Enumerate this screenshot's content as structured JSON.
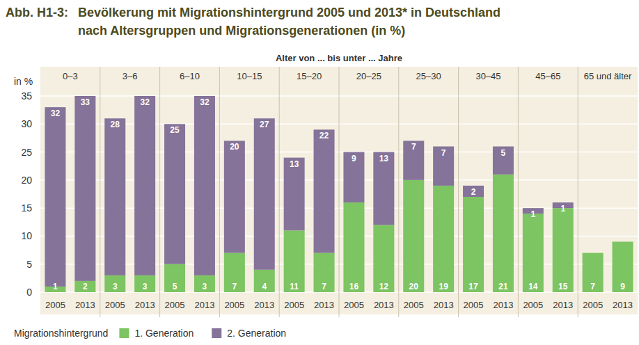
{
  "chart_data": {
    "type": "bar",
    "title_label": "Abb. H1-3:",
    "title_lines": [
      "Bevölkerung mit Migrationshintergrund 2005 und 2013* in Deutschland",
      "nach Altersgruppen und Migrationsgenerationen (in %)"
    ],
    "group_axis_label": "Alter von ... bis unter ... Jahre",
    "y_label": "in %",
    "legend_title": "Migrationshintergrund",
    "category_groups": [
      "0–3",
      "0–3",
      "3–6",
      "3–6",
      "6–10",
      "6–10",
      "10–15",
      "10–15",
      "15–20",
      "15–20",
      "20–25",
      "20–25",
      "25–30",
      "25–30",
      "30–45",
      "30–45",
      "45–65",
      "45–65",
      "65 und älter",
      "65 und älter"
    ],
    "categories": [
      "2005",
      "2013",
      "2005",
      "2013",
      "2005",
      "2013",
      "2005",
      "2013",
      "2005",
      "2013",
      "2005",
      "2013",
      "2005",
      "2013",
      "2005",
      "2013",
      "2005",
      "2013",
      "2005",
      "2013"
    ],
    "series": [
      {
        "name": "1. Generation",
        "color": "#7dc462",
        "values": [
          1,
          2,
          3,
          3,
          5,
          3,
          7,
          4,
          11,
          7,
          16,
          12,
          20,
          19,
          17,
          21,
          14,
          15,
          7,
          9
        ]
      },
      {
        "name": "2. Generation",
        "color": "#857399",
        "values": [
          32,
          33,
          28,
          32,
          25,
          32,
          20,
          27,
          13,
          22,
          9,
          13,
          7,
          7,
          2,
          5,
          1,
          1,
          null,
          null
        ]
      }
    ],
    "stacked": true,
    "data_labels": true,
    "grid": true,
    "legend": "bottom",
    "ylim": [
      0,
      35
    ],
    "yticks": [
      0,
      5,
      10,
      15,
      20,
      25,
      30,
      35
    ]
  }
}
